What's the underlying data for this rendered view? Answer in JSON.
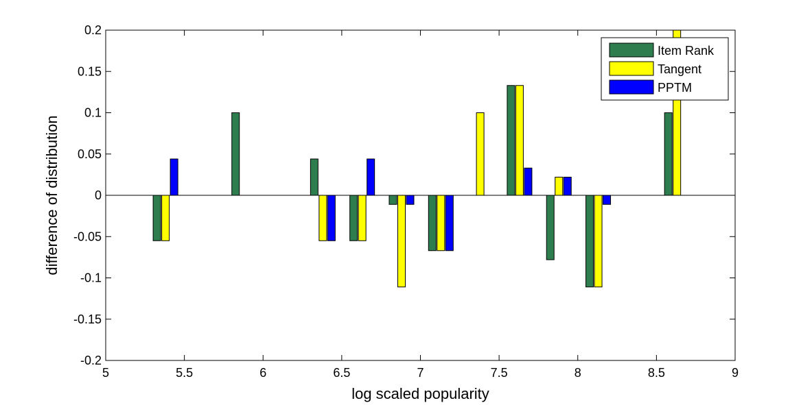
{
  "chart_data": {
    "type": "bar",
    "title": "",
    "xlabel": "log scaled popularity",
    "ylabel": "difference of distribution",
    "xlim": [
      5,
      9
    ],
    "ylim": [
      -0.2,
      0.2
    ],
    "xticks": [
      "5",
      "5.5",
      "6",
      "6.5",
      "7",
      "7.5",
      "8",
      "8.5",
      "9"
    ],
    "yticks": [
      "-0.2",
      "-0.15",
      "-0.1",
      "-0.05",
      "0",
      "0.05",
      "0.1",
      "0.15",
      "0.2"
    ],
    "grid": false,
    "legend_position": "top-right",
    "categories": [
      5.38,
      5.88,
      6.38,
      6.63,
      6.88,
      7.13,
      7.38,
      7.63,
      7.88,
      8.13,
      8.63
    ],
    "series": [
      {
        "name": "Item Rank",
        "color": "#2e7d4f",
        "values": [
          -0.055,
          0.1,
          0.044,
          -0.055,
          -0.011,
          -0.067,
          0,
          0.133,
          -0.078,
          -0.111,
          0.1
        ]
      },
      {
        "name": "Tangent",
        "color": "#ffff00",
        "values": [
          -0.055,
          0,
          -0.055,
          -0.055,
          -0.111,
          -0.067,
          0.1,
          0.133,
          0.022,
          -0.111,
          0.2
        ]
      },
      {
        "name": "PPTM",
        "color": "#0000ff",
        "values": [
          0.044,
          0,
          -0.055,
          0.044,
          -0.011,
          -0.067,
          0,
          0.033,
          0.022,
          -0.011,
          0
        ]
      }
    ]
  }
}
